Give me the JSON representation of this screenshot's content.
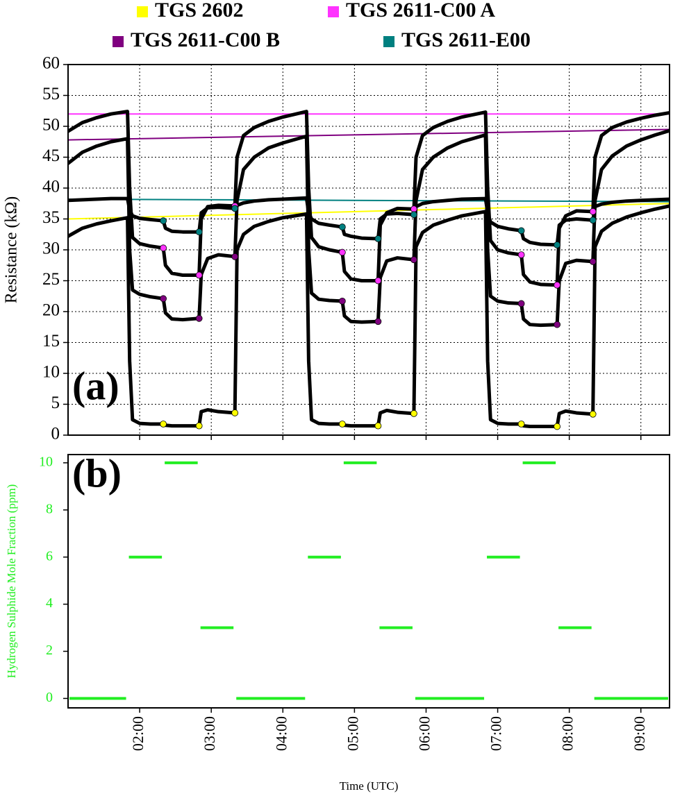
{
  "chart_data": [
    {
      "type": "line",
      "y_label": "Resistance (kΩ)",
      "panel_label": "(a)",
      "xlim": [
        1.0,
        9.4
      ],
      "xticks": [
        2,
        3,
        4,
        5,
        6,
        7,
        8,
        9
      ],
      "ylim": [
        0,
        60
      ],
      "yticks": [
        0,
        5,
        10,
        15,
        20,
        25,
        30,
        35,
        40,
        45,
        50,
        55,
        60
      ],
      "grid": true,
      "trace_color": "#000000",
      "x": [
        1.0,
        1.2,
        1.4,
        1.6,
        1.83,
        1.86,
        1.9,
        2.0,
        2.15,
        2.33,
        2.36,
        2.45,
        2.6,
        2.83,
        2.86,
        2.95,
        3.1,
        3.33,
        3.36,
        3.45,
        3.6,
        3.8,
        4.0,
        4.33,
        4.36,
        4.4,
        4.5,
        4.65,
        4.83,
        4.86,
        4.95,
        5.1,
        5.33,
        5.36,
        5.45,
        5.6,
        5.83,
        5.86,
        5.95,
        6.1,
        6.3,
        6.5,
        6.83,
        6.86,
        6.9,
        7.0,
        7.15,
        7.33,
        7.36,
        7.45,
        7.6,
        7.83,
        7.86,
        7.95,
        8.1,
        8.33,
        8.36,
        8.45,
        8.6,
        8.8,
        9.0,
        9.2,
        9.4
      ],
      "marker_x": [
        2.33,
        2.83,
        3.33,
        4.83,
        5.33,
        5.83,
        7.33,
        7.83,
        8.33
      ],
      "baseline_x": [
        1.0,
        9.4
      ],
      "series": [
        {
          "name": "TGS 2602",
          "color": "#ffff00",
          "baseline": [
            35.0,
            37.5
          ],
          "values": [
            32.2,
            33.5,
            34.2,
            34.7,
            35.2,
            12,
            2.5,
            1.9,
            1.8,
            1.8,
            1.6,
            1.5,
            1.5,
            1.5,
            3.8,
            4.1,
            3.8,
            3.6,
            30,
            32.5,
            33.8,
            34.6,
            35.2,
            35.8,
            12,
            2.5,
            1.9,
            1.8,
            1.8,
            1.6,
            1.5,
            1.5,
            1.5,
            3.6,
            4.0,
            3.7,
            3.5,
            30.5,
            32.8,
            34.0,
            34.8,
            35.5,
            36.2,
            12,
            2.5,
            1.9,
            1.8,
            1.8,
            1.5,
            1.4,
            1.4,
            1.4,
            3.5,
            3.9,
            3.6,
            3.4,
            30.5,
            33,
            34.3,
            35.3,
            36,
            36.6,
            37.1
          ]
        },
        {
          "name": "TGS 2611-C00 A",
          "color": "#ff33ff",
          "baseline": [
            52.0,
            52.0
          ],
          "values": [
            49.2,
            50.6,
            51.4,
            52.0,
            52.4,
            40,
            32,
            31,
            30.6,
            30.3,
            27.5,
            26.2,
            25.9,
            25.9,
            35,
            37,
            37.2,
            37.1,
            45,
            48.5,
            49.8,
            50.8,
            51.5,
            52.4,
            40,
            32,
            30.5,
            30,
            29.6,
            26.5,
            25.3,
            25.0,
            25.0,
            34,
            36,
            36.7,
            36.6,
            45,
            48.5,
            49.8,
            50.8,
            51.5,
            52.3,
            40,
            31.5,
            30,
            29.5,
            29.2,
            26,
            24.8,
            24.4,
            24.3,
            33.5,
            35.5,
            36.3,
            36.2,
            45,
            48.5,
            49.8,
            50.7,
            51.3,
            51.8,
            52.2
          ]
        },
        {
          "name": "TGS 2611-C00 B",
          "color": "#800080",
          "baseline": [
            47.8,
            49.5
          ],
          "values": [
            44,
            45.8,
            46.8,
            47.5,
            48.0,
            30,
            23.5,
            22.8,
            22.4,
            22.1,
            19.8,
            18.8,
            18.7,
            18.9,
            26,
            28.6,
            29.2,
            28.9,
            38,
            43,
            45,
            46.5,
            47.3,
            48.4,
            30,
            23,
            22,
            21.8,
            21.7,
            19.3,
            18.4,
            18.3,
            18.4,
            25.5,
            28.2,
            28.7,
            28.4,
            38,
            43,
            45,
            46.5,
            47.5,
            48.6,
            30,
            22.5,
            21.7,
            21.4,
            21.3,
            18.8,
            17.9,
            17.8,
            17.9,
            25,
            27.8,
            28.3,
            28.1,
            38,
            43,
            45.2,
            46.8,
            47.8,
            48.6,
            49.3
          ]
        },
        {
          "name": "TGS 2611-E00",
          "color": "#008080",
          "baseline": [
            38.2,
            37.8
          ],
          "values": [
            38.0,
            38.1,
            38.2,
            38.3,
            38.3,
            36.5,
            35.5,
            35.1,
            34.9,
            34.7,
            33.5,
            33.0,
            32.9,
            32.9,
            36.0,
            36.8,
            36.9,
            36.7,
            37.2,
            37.6,
            37.9,
            38.1,
            38.2,
            38.4,
            36,
            35,
            34.3,
            34,
            33.7,
            32.5,
            32.2,
            31.9,
            31.8,
            35,
            35.8,
            35.9,
            35.7,
            37,
            37.5,
            37.8,
            38,
            38.2,
            38.3,
            36,
            34.5,
            33.8,
            33.4,
            33.1,
            31.8,
            31.2,
            30.9,
            30.8,
            34,
            34.8,
            35,
            34.8,
            37,
            37.4,
            37.7,
            37.9,
            38,
            38.1,
            38.2
          ]
        }
      ]
    },
    {
      "type": "segment",
      "y_label": "Hydrogen Sulphide Mole Fraction (ppm)",
      "x_label": "Time (UTC)",
      "panel_label": "(b)",
      "label_color": "#22ee22",
      "grid": false,
      "xlim": [
        1.0,
        9.4
      ],
      "xticks": [
        {
          "value": 2,
          "label": "02:00"
        },
        {
          "value": 3,
          "label": "03:00"
        },
        {
          "value": 4,
          "label": "04:00"
        },
        {
          "value": 5,
          "label": "05:00"
        },
        {
          "value": 6,
          "label": "06:00"
        },
        {
          "value": 7,
          "label": "07:00"
        },
        {
          "value": 8,
          "label": "08:00"
        },
        {
          "value": 9,
          "label": "09:00"
        }
      ],
      "ylim": [
        -0.4,
        10.35
      ],
      "yticks": [
        0,
        2,
        4,
        6,
        8,
        10
      ],
      "series": [
        {
          "color": "#22ee22",
          "x_start": [
            1.0,
            1.83,
            2.33,
            2.83,
            3.33,
            4.33,
            4.83,
            5.33,
            5.83,
            6.83,
            7.33,
            7.83,
            8.33
          ],
          "x_end": [
            1.83,
            2.33,
            2.83,
            3.33,
            4.33,
            4.83,
            5.33,
            5.83,
            6.83,
            7.33,
            7.83,
            8.33,
            9.4
          ],
          "values": [
            0,
            6,
            10,
            3,
            0,
            6,
            10,
            3,
            0,
            6,
            10,
            3,
            0
          ]
        }
      ]
    }
  ]
}
